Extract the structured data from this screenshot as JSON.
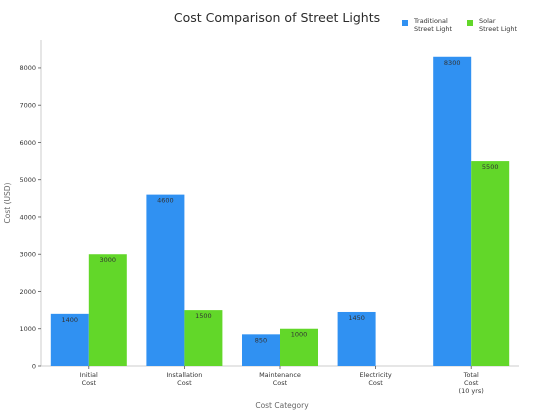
{
  "chart_data": {
    "type": "bar",
    "title": "Cost Comparison of Street Lights",
    "xlabel": "Cost Category",
    "ylabel": "Cost (USD)",
    "categories": [
      [
        "Initial",
        "Cost"
      ],
      [
        "Installation",
        "Cost"
      ],
      [
        "Maintenance",
        "Cost"
      ],
      [
        "Electricity",
        "Cost"
      ],
      [
        "Total",
        "Cost",
        "(10 yrs)"
      ]
    ],
    "series": [
      {
        "name": [
          "Traditional",
          "Street Light"
        ],
        "color": "#3091f2",
        "values": [
          1400,
          4600,
          850,
          1450,
          8300
        ]
      },
      {
        "name": [
          "Solar",
          "Street Light"
        ],
        "color": "#62d729",
        "values": [
          3000,
          1500,
          1000,
          0,
          5500
        ]
      }
    ],
    "ylim": [
      0,
      8750
    ],
    "yticks": [
      0,
      1000,
      2000,
      3000,
      4000,
      5000,
      6000,
      7000,
      8000
    ],
    "grid": false,
    "legend": "top-right"
  }
}
